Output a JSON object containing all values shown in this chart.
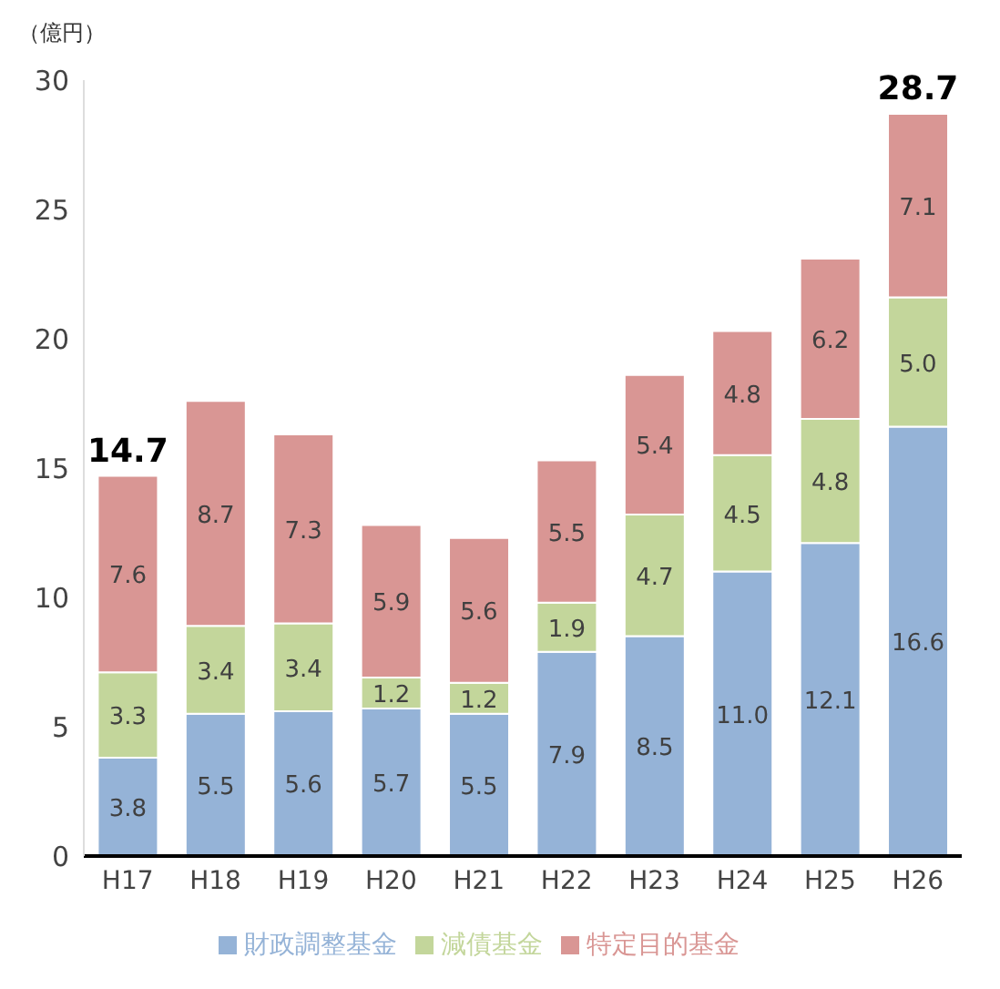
{
  "chart_data": {
    "type": "bar",
    "stacked": true,
    "ylabel": "（億円）",
    "categories": [
      "H17",
      "H18",
      "H19",
      "H20",
      "H21",
      "H22",
      "H23",
      "H24",
      "H25",
      "H26"
    ],
    "series": [
      {
        "name": "財政調整基金",
        "color": "#95b3d7",
        "values": [
          3.8,
          5.5,
          5.6,
          5.7,
          5.5,
          7.9,
          8.5,
          11.0,
          12.1,
          16.6
        ],
        "value_labels": [
          "3.8",
          "5.5",
          "5.6",
          "5.7",
          "5.5",
          "7.9",
          "8.5",
          "11.0",
          "12.1",
          "16.6"
        ]
      },
      {
        "name": "減債基金",
        "color": "#c3d69b",
        "values": [
          3.3,
          3.4,
          3.4,
          1.2,
          1.2,
          1.9,
          4.7,
          4.5,
          4.8,
          5.0
        ],
        "value_labels": [
          "3.3",
          "3.4",
          "3.4",
          "1.2",
          "1.2",
          "1.9",
          "4.7",
          "4.5",
          "4.8",
          "5.0"
        ]
      },
      {
        "name": "特定目的基金",
        "color": "#d99694",
        "values": [
          7.6,
          8.7,
          7.3,
          5.9,
          5.6,
          5.5,
          5.4,
          4.8,
          6.2,
          7.1
        ],
        "value_labels": [
          "7.6",
          "8.7",
          "7.3",
          "5.9",
          "5.6",
          "5.5",
          "5.4",
          "4.8",
          "6.2",
          "7.1"
        ]
      }
    ],
    "totals": [
      "14.7",
      null,
      null,
      null,
      null,
      null,
      null,
      null,
      null,
      "28.7"
    ],
    "ylim": [
      0,
      30
    ],
    "yticks": [
      0,
      5,
      10,
      15,
      20,
      25,
      30
    ],
    "grid": false,
    "legend": "bottom"
  }
}
